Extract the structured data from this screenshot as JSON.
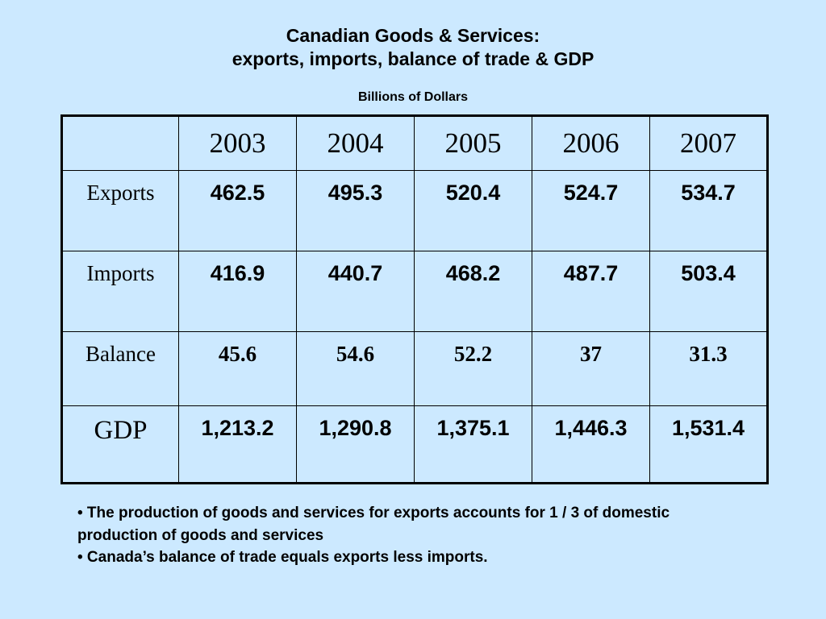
{
  "title": {
    "line1": "Canadian Goods & Services:",
    "line2": "exports, imports, balance of trade & GDP"
  },
  "subtitle": "Billions of Dollars",
  "table": {
    "years": [
      "2003",
      "2004",
      "2005",
      "2006",
      "2007"
    ],
    "rows": [
      {
        "label": "Exports",
        "values": [
          "462.5",
          "495.3",
          "520.4",
          "524.7",
          "534.7"
        ]
      },
      {
        "label": "Imports",
        "values": [
          "416.9",
          "440.7",
          "468.2",
          "487.7",
          "503.4"
        ]
      },
      {
        "label": "Balance",
        "values": [
          "45.6",
          "54.6",
          "52.2",
          "37",
          "31.3"
        ]
      },
      {
        "label": "GDP",
        "values": [
          "1,213.2",
          "1,290.8",
          "1,375.1",
          "1,446.3",
          "1,531.4"
        ]
      }
    ]
  },
  "notes": [
    "• The production of goods and services for exports accounts for 1 / 3 of domestic production of goods and services",
    "• Canada’s balance of trade equals exports less imports."
  ]
}
